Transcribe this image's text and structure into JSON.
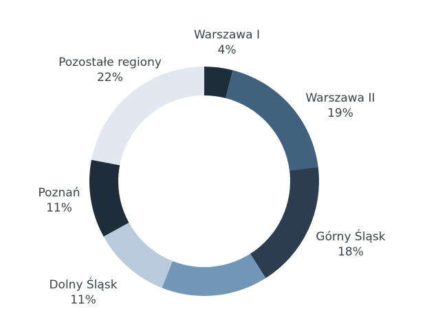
{
  "chart_data": {
    "type": "pie",
    "variant": "donut",
    "title": "",
    "legend": "none",
    "slices": [
      {
        "label": "Warszawa I",
        "value": 4,
        "value_label": "4%",
        "color": "#1f2d3b"
      },
      {
        "label": "Warszawa II",
        "value": 19,
        "value_label": "19%",
        "color": "#41627f"
      },
      {
        "label": "Górny Śląsk",
        "value": 18,
        "value_label": "18%",
        "color": "#2c3d50"
      },
      {
        "label": "",
        "value": 15,
        "value_label": "",
        "color": "#7296b5"
      },
      {
        "label": "Dolny Śląsk",
        "value": 11,
        "value_label": "11%",
        "color": "#b8cadb"
      },
      {
        "label": "Poznań",
        "value": 11,
        "value_label": "11%",
        "color": "#1f2d3b"
      },
      {
        "label": "Pozostałe regiony",
        "value": 22,
        "value_label": "22%",
        "color": "#e2e8ef"
      }
    ]
  }
}
